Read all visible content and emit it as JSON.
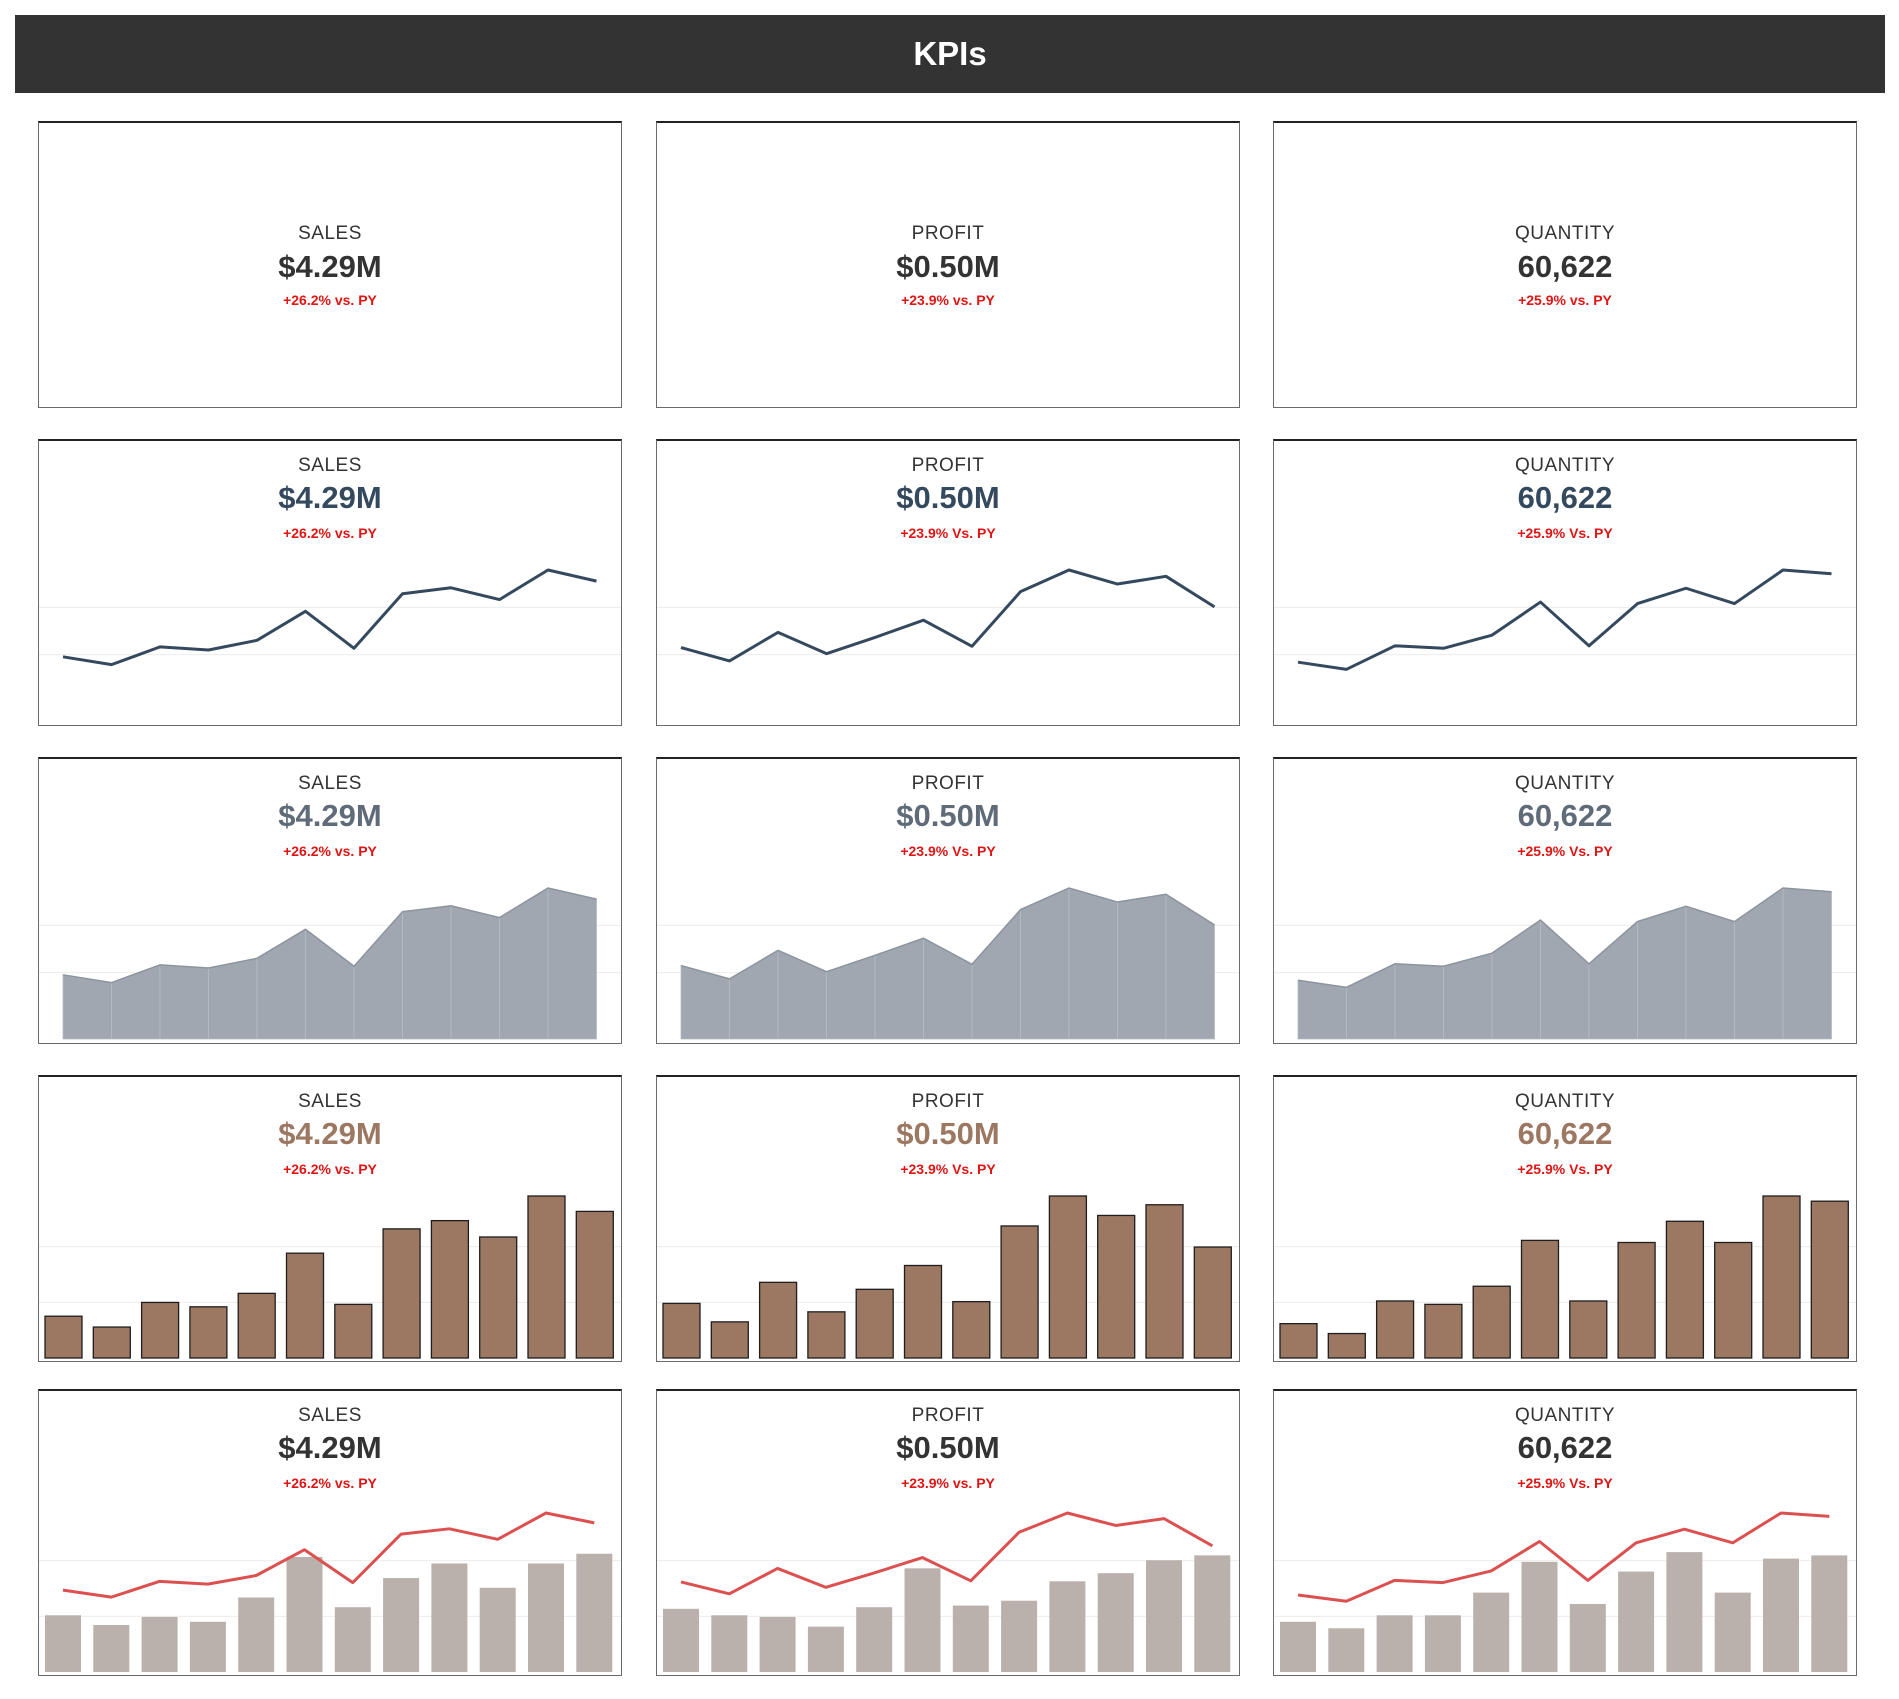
{
  "header": {
    "title": "KPIs"
  },
  "kpis": {
    "sales": {
      "label": "SALES",
      "value": "$4.29M",
      "delta": "+26.2% vs. PY"
    },
    "profit": {
      "label": "PROFIT",
      "value": "$0.50M",
      "delta": "+23.9% vs. PY",
      "delta_alt": "+23.9% Vs. PY"
    },
    "quantity": {
      "label": "QUANTITY",
      "value": "60,622",
      "delta": "+25.9% vs. PY",
      "delta_alt": "+25.9% Vs. PY"
    }
  },
  "colors": {
    "header_bg": "#333333",
    "text_dark": "#333333",
    "delta_red": "#e01515",
    "line_navy": "#34495e",
    "area_gray": "#a0a7b0",
    "area_text": "#5f6b78",
    "bar_brown": "#9c7761",
    "combo_bar": "#bab1ac",
    "combo_line": "#dc5050"
  },
  "chart_data": [
    {
      "type": "line",
      "metric": "sales",
      "values": [
        0.258,
        0.191,
        0.343,
        0.316,
        0.399,
        0.647,
        0.331,
        0.797,
        0.848,
        0.747,
        1.0,
        0.905
      ]
    },
    {
      "type": "line",
      "metric": "profit",
      "values": [
        0.337,
        0.223,
        0.467,
        0.285,
        0.424,
        0.571,
        0.348,
        0.815,
        1.0,
        0.88,
        0.946,
        0.685
      ]
    },
    {
      "type": "line",
      "metric": "quantity",
      "values": [
        0.212,
        0.151,
        0.352,
        0.331,
        0.443,
        0.726,
        0.352,
        0.713,
        0.844,
        0.713,
        1.0,
        0.968
      ]
    },
    {
      "type": "area",
      "metric": "sales",
      "values": [
        0.258,
        0.191,
        0.343,
        0.316,
        0.399,
        0.647,
        0.331,
        0.797,
        0.848,
        0.747,
        1.0,
        0.905
      ]
    },
    {
      "type": "area",
      "metric": "profit",
      "values": [
        0.337,
        0.223,
        0.467,
        0.285,
        0.424,
        0.571,
        0.348,
        0.815,
        1.0,
        0.88,
        0.946,
        0.685
      ]
    },
    {
      "type": "area",
      "metric": "quantity",
      "values": [
        0.212,
        0.151,
        0.352,
        0.331,
        0.443,
        0.726,
        0.352,
        0.713,
        0.844,
        0.713,
        1.0,
        0.968
      ]
    },
    {
      "type": "bar",
      "metric": "sales",
      "values": [
        0.258,
        0.191,
        0.343,
        0.316,
        0.399,
        0.647,
        0.331,
        0.797,
        0.848,
        0.747,
        1.0,
        0.905
      ]
    },
    {
      "type": "bar",
      "metric": "profit",
      "values": [
        0.337,
        0.223,
        0.467,
        0.285,
        0.424,
        0.571,
        0.348,
        0.815,
        1.0,
        0.88,
        0.946,
        0.685
      ]
    },
    {
      "type": "bar",
      "metric": "quantity",
      "values": [
        0.212,
        0.151,
        0.352,
        0.331,
        0.443,
        0.726,
        0.352,
        0.713,
        0.844,
        0.713,
        1.0,
        0.968
      ]
    },
    {
      "type": "combo",
      "metric": "sales",
      "bar_values": [
        0.35,
        0.29,
        0.34,
        0.31,
        0.46,
        0.71,
        0.4,
        0.58,
        0.67,
        0.52,
        0.67,
        0.73
      ],
      "line_values": [
        0.258,
        0.191,
        0.343,
        0.316,
        0.399,
        0.647,
        0.331,
        0.797,
        0.848,
        0.747,
        1.0,
        0.905
      ]
    },
    {
      "type": "combo",
      "metric": "profit",
      "bar_values": [
        0.39,
        0.35,
        0.34,
        0.28,
        0.4,
        0.64,
        0.41,
        0.44,
        0.56,
        0.61,
        0.69,
        0.72
      ],
      "line_values": [
        0.337,
        0.223,
        0.467,
        0.285,
        0.424,
        0.571,
        0.348,
        0.815,
        1.0,
        0.88,
        0.946,
        0.685
      ]
    },
    {
      "type": "combo",
      "metric": "quantity",
      "bar_values": [
        0.31,
        0.27,
        0.35,
        0.35,
        0.49,
        0.68,
        0.42,
        0.62,
        0.74,
        0.49,
        0.7,
        0.72
      ],
      "line_values": [
        0.212,
        0.151,
        0.352,
        0.331,
        0.443,
        0.726,
        0.352,
        0.713,
        0.844,
        0.713,
        1.0,
        0.968
      ]
    }
  ]
}
